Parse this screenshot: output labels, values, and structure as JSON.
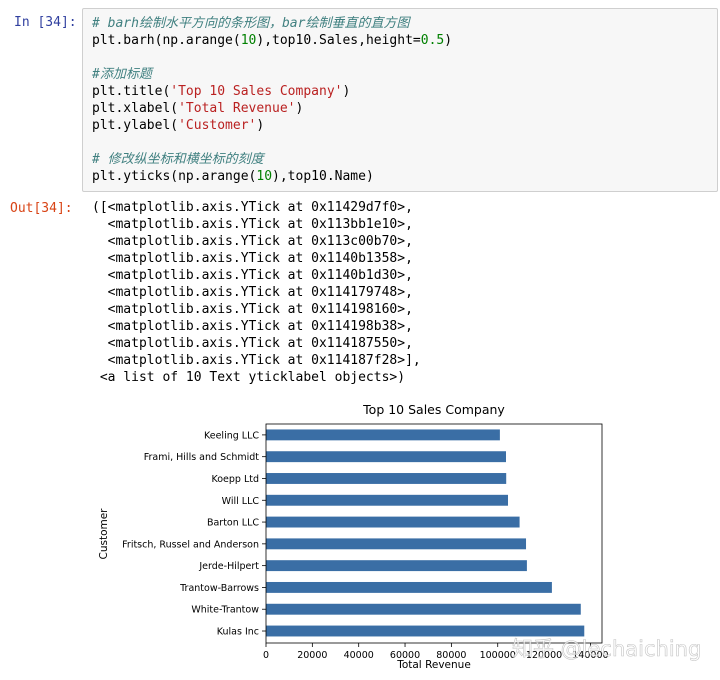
{
  "input_prompt": "In [34]:",
  "output_prompt": "Out[34]:",
  "code_lines": [
    [
      {
        "t": "# barh绘制水平方向的条形图，bar绘制垂直的直方图",
        "c": "cm"
      }
    ],
    [
      {
        "t": "plt.barh(np.arange(",
        "c": "pl"
      },
      {
        "t": "10",
        "c": "nm"
      },
      {
        "t": "),top10.Sales,height=",
        "c": "pl"
      },
      {
        "t": "0.5",
        "c": "nm"
      },
      {
        "t": ")",
        "c": "pl"
      }
    ],
    [
      {
        "t": "",
        "c": "pl"
      }
    ],
    [
      {
        "t": "#添加标题",
        "c": "cm"
      }
    ],
    [
      {
        "t": "plt.title(",
        "c": "pl"
      },
      {
        "t": "'Top 10 Sales Company'",
        "c": "st"
      },
      {
        "t": ")",
        "c": "pl"
      }
    ],
    [
      {
        "t": "plt.xlabel(",
        "c": "pl"
      },
      {
        "t": "'Total Revenue'",
        "c": "st"
      },
      {
        "t": ")",
        "c": "pl"
      }
    ],
    [
      {
        "t": "plt.ylabel(",
        "c": "pl"
      },
      {
        "t": "'Customer'",
        "c": "st"
      },
      {
        "t": ")",
        "c": "pl"
      }
    ],
    [
      {
        "t": "",
        "c": "pl"
      }
    ],
    [
      {
        "t": "# 修改纵坐标和横坐标的刻度",
        "c": "cm"
      }
    ],
    [
      {
        "t": "plt.yticks(np.arange(",
        "c": "pl"
      },
      {
        "t": "10",
        "c": "nm"
      },
      {
        "t": "),top10.Name)",
        "c": "pl"
      }
    ]
  ],
  "output_lines": [
    "([<matplotlib.axis.YTick at 0x11429d7f0>,",
    "  <matplotlib.axis.YTick at 0x113bb1e10>,",
    "  <matplotlib.axis.YTick at 0x113c00b70>,",
    "  <matplotlib.axis.YTick at 0x1140b1358>,",
    "  <matplotlib.axis.YTick at 0x1140b1d30>,",
    "  <matplotlib.axis.YTick at 0x114179748>,",
    "  <matplotlib.axis.YTick at 0x114198160>,",
    "  <matplotlib.axis.YTick at 0x114198b38>,",
    "  <matplotlib.axis.YTick at 0x114187550>,",
    "  <matplotlib.axis.YTick at 0x114187f28>],",
    " <a list of 10 Text yticklabel objects>)"
  ],
  "watermark": "知乎 @lechaiching",
  "chart_data": {
    "type": "bar",
    "orientation": "horizontal",
    "title": "Top 10 Sales Company",
    "xlabel": "Total Revenue",
    "ylabel": "Customer",
    "categories": [
      "Kulas Inc",
      "White-Trantow",
      "Trantow-Barrows",
      "Jerde-Hilpert",
      "Fritsch, Russel and Anderson",
      "Barton LLC",
      "Will LLC",
      "Koepp Ltd",
      "Frami, Hills and Schmidt",
      "Keeling LLC"
    ],
    "values": [
      137351,
      135841,
      123381,
      112591,
      112214,
      109438,
      104437,
      103660,
      103569,
      100934
    ],
    "xlim": [
      0,
      145000
    ],
    "xticks": [
      0,
      20000,
      40000,
      60000,
      80000,
      100000,
      120000,
      140000
    ],
    "bar_color": "#3a6ea5",
    "grid": false
  }
}
